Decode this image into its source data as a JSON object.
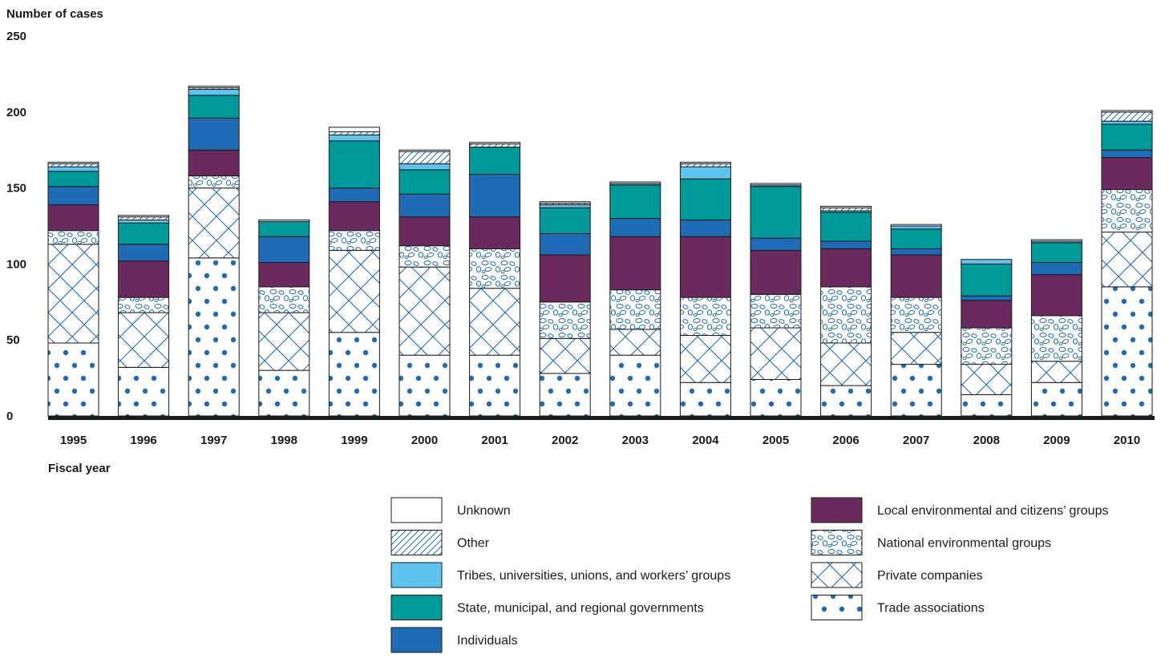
{
  "chart_data": {
    "type": "bar",
    "stacked": true,
    "ylabel": "Number of cases",
    "xlabel": "Fiscal year",
    "ylim": [
      0,
      250
    ],
    "yticks": [
      0,
      50,
      100,
      150,
      200,
      250
    ],
    "grid": false,
    "legend_position": "bottom-right",
    "categories": [
      "1995",
      "1996",
      "1997",
      "1998",
      "1999",
      "2000",
      "2001",
      "2002",
      "2003",
      "2004",
      "2005",
      "2006",
      "2007",
      "2008",
      "2009",
      "2010"
    ],
    "series": [
      {
        "name": "Trade associations",
        "pattern": "dots",
        "color": "#1f6bb5",
        "values": [
          48,
          32,
          104,
          30,
          55,
          40,
          40,
          28,
          40,
          22,
          24,
          20,
          34,
          14,
          22,
          85
        ]
      },
      {
        "name": "Private companies",
        "pattern": "crosshatch",
        "color": "#1f6bb5",
        "values": [
          65,
          36,
          46,
          38,
          54,
          58,
          44,
          23,
          17,
          31,
          34,
          28,
          21,
          20,
          14,
          36
        ]
      },
      {
        "name": "National environmental groups",
        "pattern": "pebbles",
        "color": "#1f6bb5",
        "values": [
          9,
          10,
          8,
          17,
          13,
          14,
          26,
          24,
          26,
          25,
          22,
          37,
          23,
          24,
          30,
          28
        ]
      },
      {
        "name": "Local environmental and citizens’ groups",
        "pattern": "solid",
        "color": "#6b2a5e",
        "values": [
          17,
          24,
          17,
          16,
          19,
          19,
          21,
          31,
          35,
          40,
          29,
          25,
          28,
          18,
          27,
          21
        ]
      },
      {
        "name": "Individuals",
        "pattern": "solid",
        "color": "#1f6bb5",
        "values": [
          12,
          11,
          21,
          17,
          9,
          15,
          28,
          14,
          12,
          11,
          8,
          5,
          4,
          3,
          8,
          5
        ]
      },
      {
        "name": "State, municipal, and regional governments",
        "pattern": "solid",
        "color": "#009a9a",
        "values": [
          10,
          14,
          15,
          10,
          31,
          16,
          18,
          17,
          22,
          27,
          34,
          19,
          13,
          21,
          13,
          17
        ]
      },
      {
        "name": "Tribes, universities, unions, and workers’ groups",
        "pattern": "solid",
        "color": "#5fc4ed",
        "values": [
          3,
          2,
          4,
          0,
          4,
          4,
          0,
          2,
          1,
          8,
          1,
          1,
          2,
          3,
          1,
          2
        ]
      },
      {
        "name": "Other",
        "pattern": "diagonal",
        "color": "#1f6bb5",
        "values": [
          2,
          2,
          1,
          0,
          2,
          8,
          2,
          1,
          0,
          2,
          0,
          2,
          0,
          0,
          0,
          6
        ]
      },
      {
        "name": "Unknown",
        "pattern": "blank",
        "color": "#ffffff",
        "values": [
          1,
          1,
          1,
          1,
          3,
          1,
          1,
          1,
          1,
          1,
          1,
          1,
          1,
          0,
          1,
          1
        ]
      }
    ],
    "legend_order": [
      "Unknown",
      "Other",
      "Tribes, universities, unions, and workers’ groups",
      "State, municipal, and regional governments",
      "Individuals",
      "Local environmental and citizens’ groups",
      "National environmental groups",
      "Private companies",
      "Trade associations"
    ]
  }
}
